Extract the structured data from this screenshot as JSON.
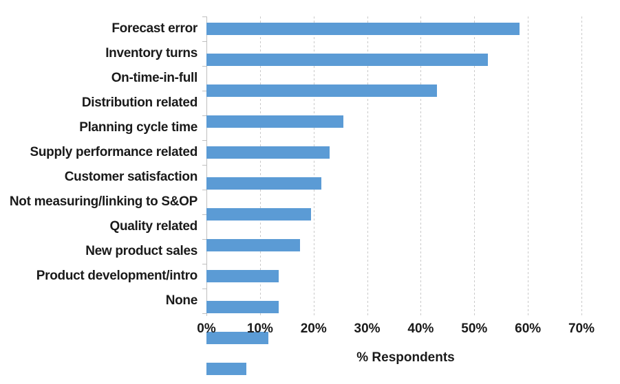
{
  "chart_data": {
    "type": "bar",
    "orientation": "horizontal",
    "title": "",
    "xlabel": "% Respondents",
    "ylabel": "",
    "xlim": [
      0,
      70
    ],
    "tick_step": 10,
    "x_ticks": [
      "0%",
      "10%",
      "20%",
      "30%",
      "40%",
      "50%",
      "60%",
      "70%"
    ],
    "grid": "vertical-dashed",
    "legend": "none",
    "categories": [
      "Forecast error",
      "Inventory turns",
      "On-time-in-full",
      "Distribution related",
      "Planning cycle time",
      "Supply performance related",
      "Customer satisfaction",
      "Not measuring/linking to S&OP",
      "Quality related",
      "New product sales",
      "Product development/intro",
      "None"
    ],
    "values": [
      58.5,
      52.5,
      43,
      25.5,
      23,
      21.5,
      19.5,
      17.5,
      13.5,
      13.5,
      11.5,
      7.5
    ],
    "unit": "%"
  },
  "colors": {
    "bar": "#5B9BD5",
    "gridline": "#C9C9C9",
    "axis_line": "#BFBFBF",
    "text": "#1A1A1A",
    "background": "#FFFFFF"
  }
}
